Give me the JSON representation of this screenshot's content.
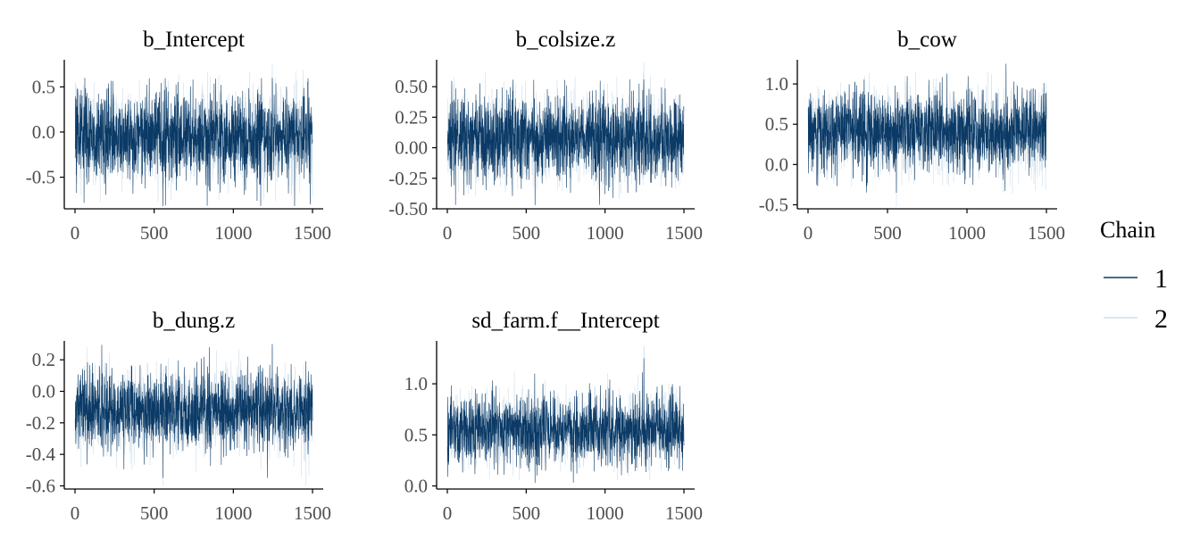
{
  "colors": {
    "chain_1": "#0b3a66",
    "chain_2": "#cfdfea",
    "axis": "#000000",
    "tick_label": "#4d4d4d"
  },
  "legend": {
    "title": "Chain",
    "position": "right",
    "entries": [
      "1",
      "2"
    ]
  },
  "chart_data": [
    {
      "type": "line",
      "title": "b_Intercept",
      "xlabel": "",
      "ylabel": "",
      "xlim": [
        0,
        1500
      ],
      "ylim": [
        -0.85,
        0.8
      ],
      "x_ticks": [
        0,
        500,
        1000,
        1500
      ],
      "y_ticks": [
        -0.5,
        0.0,
        0.5
      ],
      "y_tick_labels": [
        "-0.5",
        "0.0",
        "0.5"
      ],
      "grid": false,
      "series": [
        {
          "name": "1",
          "trace": {
            "iterations": 1500,
            "center": -0.05,
            "band_low": -0.3,
            "band_high": 0.2,
            "min": -0.82,
            "max": 0.6
          }
        },
        {
          "name": "2",
          "trace": {
            "iterations": 1500,
            "center": -0.05,
            "band_low": -0.3,
            "band_high": 0.2,
            "min": -0.78,
            "max": 0.75
          }
        }
      ]
    },
    {
      "type": "line",
      "title": "b_colsize.z",
      "xlabel": "",
      "ylabel": "",
      "xlim": [
        0,
        1500
      ],
      "ylim": [
        -0.5,
        0.72
      ],
      "x_ticks": [
        0,
        500,
        1000,
        1500
      ],
      "y_ticks": [
        -0.5,
        -0.25,
        0.0,
        0.25,
        0.5
      ],
      "y_tick_labels": [
        "-0.50",
        "-0.25",
        "0.00",
        "0.25",
        "0.50"
      ],
      "grid": false,
      "series": [
        {
          "name": "1",
          "trace": {
            "iterations": 1500,
            "center": 0.07,
            "band_low": -0.1,
            "band_high": 0.25,
            "min": -0.47,
            "max": 0.56
          }
        },
        {
          "name": "2",
          "trace": {
            "iterations": 1500,
            "center": 0.07,
            "band_low": -0.1,
            "band_high": 0.25,
            "min": -0.42,
            "max": 0.7
          }
        }
      ]
    },
    {
      "type": "line",
      "title": "b_cow",
      "xlabel": "",
      "ylabel": "",
      "xlim": [
        0,
        1500
      ],
      "ylim": [
        -0.55,
        1.3
      ],
      "x_ticks": [
        0,
        500,
        1000,
        1500
      ],
      "y_ticks": [
        -0.5,
        0.0,
        0.5,
        1.0
      ],
      "y_tick_labels": [
        "-0.5",
        "0.0",
        "0.5",
        "1.0"
      ],
      "grid": false,
      "series": [
        {
          "name": "1",
          "trace": {
            "iterations": 1500,
            "center": 0.4,
            "band_low": 0.15,
            "band_high": 0.65,
            "min": -0.35,
            "max": 1.25
          }
        },
        {
          "name": "2",
          "trace": {
            "iterations": 1500,
            "center": 0.4,
            "band_low": 0.15,
            "band_high": 0.65,
            "min": -0.52,
            "max": 1.15
          }
        }
      ]
    },
    {
      "type": "line",
      "title": "b_dung.z",
      "xlabel": "",
      "ylabel": "",
      "xlim": [
        0,
        1500
      ],
      "ylim": [
        -0.62,
        0.32
      ],
      "x_ticks": [
        0,
        500,
        1000,
        1500
      ],
      "y_ticks": [
        -0.6,
        -0.4,
        -0.2,
        0.0,
        0.2
      ],
      "y_tick_labels": [
        "-0.6",
        "-0.4",
        "-0.2",
        "0.0",
        "0.2"
      ],
      "grid": false,
      "series": [
        {
          "name": "1",
          "trace": {
            "iterations": 1500,
            "center": -0.12,
            "band_low": -0.25,
            "band_high": 0.0,
            "min": -0.55,
            "max": 0.3
          }
        },
        {
          "name": "2",
          "trace": {
            "iterations": 1500,
            "center": -0.12,
            "band_low": -0.25,
            "band_high": 0.0,
            "min": -0.6,
            "max": 0.28
          }
        }
      ]
    },
    {
      "type": "line",
      "title": "sd_farm.f__Intercept",
      "xlabel": "",
      "ylabel": "",
      "xlim": [
        0,
        1500
      ],
      "ylim": [
        -0.03,
        1.42
      ],
      "x_ticks": [
        0,
        500,
        1000,
        1500
      ],
      "y_ticks": [
        0.0,
        0.5,
        1.0
      ],
      "y_tick_labels": [
        "0.0",
        "0.5",
        "1.0"
      ],
      "grid": false,
      "series": [
        {
          "name": "1",
          "trace": {
            "iterations": 1500,
            "center": 0.55,
            "band_low": 0.38,
            "band_high": 0.72,
            "min": 0.03,
            "max": 1.25
          }
        },
        {
          "name": "2",
          "trace": {
            "iterations": 1500,
            "center": 0.55,
            "band_low": 0.38,
            "band_high": 0.72,
            "min": 0.05,
            "max": 1.38
          }
        }
      ]
    }
  ]
}
